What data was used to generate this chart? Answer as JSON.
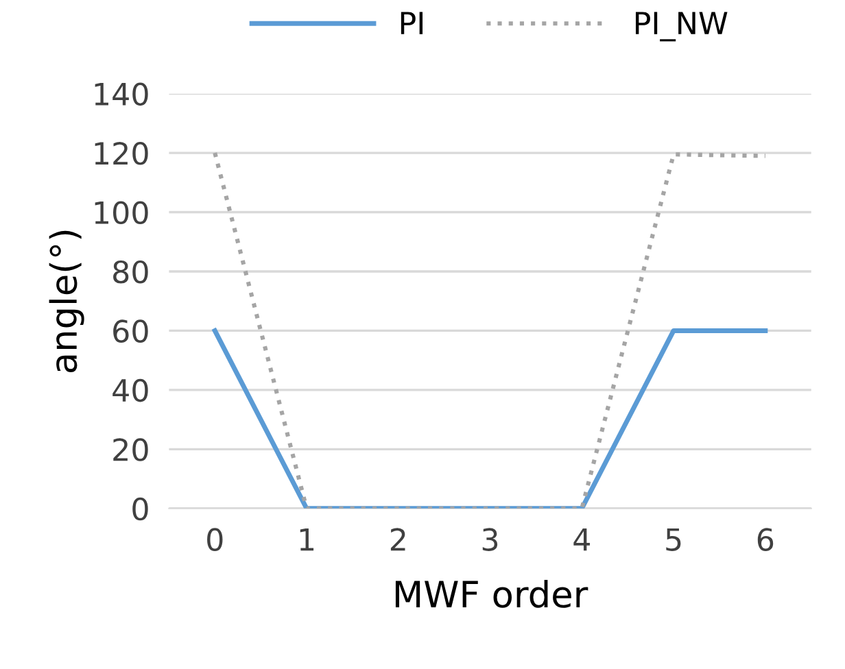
{
  "chart_data": {
    "type": "line",
    "xlabel": "MWF order",
    "ylabel": "angle(°)",
    "categories": [
      "0",
      "1",
      "2",
      "3",
      "4",
      "5",
      "6"
    ],
    "series": [
      {
        "name": "PI",
        "color": "#5b9bd5",
        "line_style": "solid",
        "values": [
          60,
          0,
          0,
          0,
          0,
          60,
          60
        ]
      },
      {
        "name": "PI_NW",
        "color": "#a5a5a5",
        "line_style": "dotted",
        "values": [
          120,
          0,
          0,
          0,
          0,
          119.5,
          119
        ]
      }
    ],
    "ylim": [
      0,
      140
    ],
    "yticks": [
      0,
      20,
      40,
      60,
      80,
      100,
      120,
      140
    ],
    "grid": "y",
    "legend": "top",
    "marker": "none"
  }
}
